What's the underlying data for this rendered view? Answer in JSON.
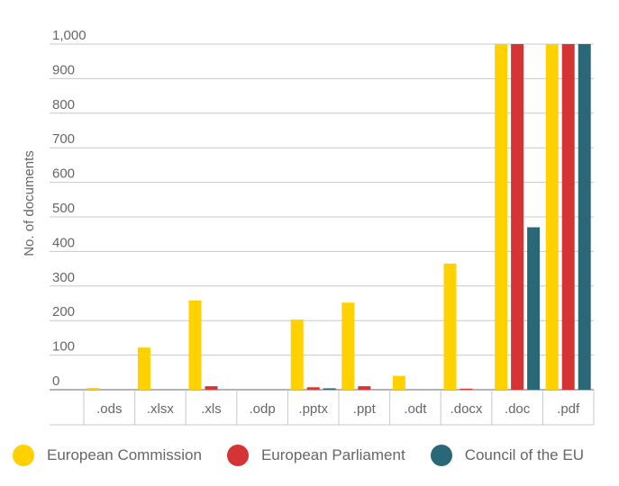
{
  "chart_data": {
    "type": "bar",
    "title": "",
    "xlabel": "",
    "ylabel": "No. of documents",
    "ylim": [
      0,
      1000
    ],
    "yticks": [
      "0",
      "100",
      "200",
      "300",
      "400",
      "500",
      "600",
      "700",
      "800",
      "900",
      "1,000"
    ],
    "categories": [
      ".ods",
      ".xlsx",
      ".xls",
      ".odp",
      ".pptx",
      ".ppt",
      ".odt",
      ".docx",
      ".doc",
      ".pdf"
    ],
    "grid": true,
    "legend_position": "bottom",
    "series": [
      {
        "name": "European Commission",
        "color": "#FFD100",
        "values": [
          5,
          122,
          258,
          0,
          203,
          252,
          40,
          365,
          1000,
          1000
        ]
      },
      {
        "name": "European Parliament",
        "color": "#D43434",
        "values": [
          0,
          0,
          10,
          0,
          7,
          10,
          0,
          3,
          1000,
          1000
        ]
      },
      {
        "name": "Council of the EU",
        "color": "#2A6878",
        "values": [
          0,
          0,
          0,
          0,
          4,
          0,
          0,
          0,
          470,
          1000
        ]
      }
    ]
  }
}
